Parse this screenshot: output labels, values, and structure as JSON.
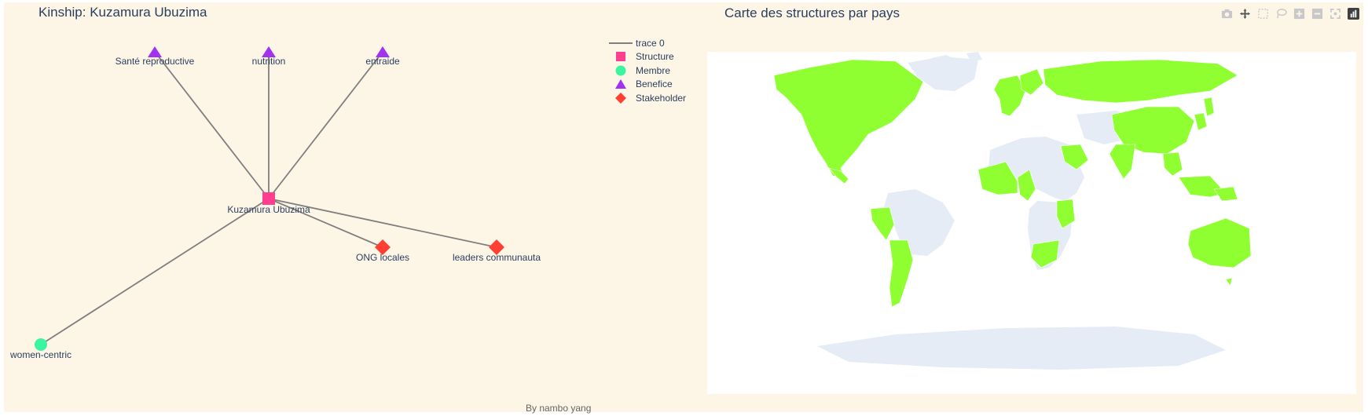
{
  "network": {
    "title": "Kinship: Kuzamura Ubuzima",
    "center": {
      "label": "Kuzamura Ubuzima",
      "type": "Structure"
    },
    "nodes": [
      {
        "label": "Santé reproductive",
        "type": "Benefice"
      },
      {
        "label": "nutrition",
        "type": "Benefice"
      },
      {
        "label": "entraide",
        "type": "Benefice"
      },
      {
        "label": "ONG locales",
        "type": "Stakeholder"
      },
      {
        "label": "leaders communauta",
        "type": "Stakeholder"
      },
      {
        "label": "women-centric",
        "type": "Membre"
      }
    ],
    "legend": [
      {
        "label": "trace 0",
        "symbol": "line",
        "color": "#7f7f7f"
      },
      {
        "label": "Structure",
        "symbol": "square",
        "color": "#ff3e8f"
      },
      {
        "label": "Membre",
        "symbol": "circle",
        "color": "#3cf5a0"
      },
      {
        "label": "Benefice",
        "symbol": "triangle",
        "color": "#a032f0"
      },
      {
        "label": "Stakeholder",
        "symbol": "diamond",
        "color": "#ff3f34"
      }
    ],
    "edge_color": "#7f7f7f",
    "footer": "By nambo yang"
  },
  "map": {
    "title": "Carte des structures par pays",
    "highlight_color": "#8fff32",
    "land_color": "#e5ecf6",
    "ocean_color": "#ffffff"
  },
  "modebar": [
    {
      "name": "camera-icon"
    },
    {
      "name": "pan-icon"
    },
    {
      "name": "box-select-icon"
    },
    {
      "name": "lasso-icon"
    },
    {
      "name": "zoom-in-icon"
    },
    {
      "name": "zoom-out-icon"
    },
    {
      "name": "reset-icon"
    },
    {
      "name": "plotly-logo-icon"
    }
  ]
}
